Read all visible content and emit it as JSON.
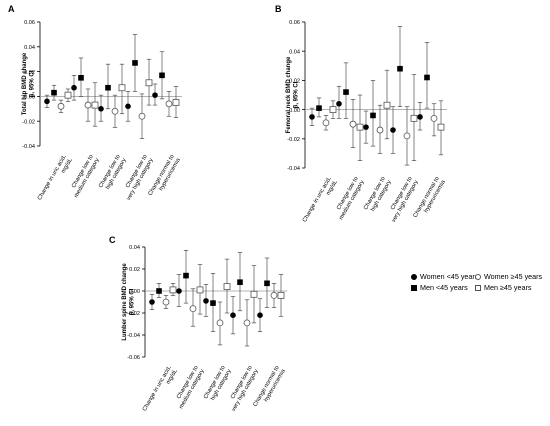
{
  "chart_data": [
    {
      "panel_letter": "A",
      "type": "scatter",
      "ylabel": [
        "Total hip  BMD change",
        "β, 95% CI"
      ],
      "yticks": [
        "0.06",
        "0.04",
        "0.02",
        "0.00",
        "-0.02",
        "-0.04"
      ],
      "ylim": [
        -0.04,
        0.06
      ],
      "categories": [
        "Change in uric acid,\nmg/dL",
        "Change low to\nmedium category",
        "Change low to\nhigh category",
        "Change low to\nvery high category",
        "Change normal to\nhyperuricemia"
      ],
      "series": [
        {
          "name": "Women <45 years",
          "points": [
            [
              -0.004,
              -0.009,
              0.001
            ],
            [
              0.007,
              -0.003,
              0.017
            ],
            [
              -0.01,
              -0.02,
              0.001
            ],
            [
              -0.008,
              -0.02,
              0.004
            ],
            [
              0.001,
              -0.007,
              0.01
            ]
          ]
        },
        {
          "name": "Men <45 years",
          "points": [
            [
              0.003,
              -0.003,
              0.009
            ],
            [
              0.015,
              0.0,
              0.031
            ],
            [
              0.007,
              -0.01,
              0.026
            ],
            [
              0.027,
              0.004,
              0.05
            ],
            [
              0.017,
              -0.002,
              0.036
            ]
          ]
        },
        {
          "name": "Women ≥45 years",
          "points": [
            [
              -0.008,
              -0.013,
              -0.003
            ],
            [
              -0.007,
              -0.02,
              0.006
            ],
            [
              -0.012,
              -0.025,
              0.001
            ],
            [
              -0.016,
              -0.034,
              0.002
            ],
            [
              -0.006,
              -0.016,
              0.004
            ]
          ]
        },
        {
          "name": "Men ≥45 years",
          "points": [
            [
              0.001,
              -0.004,
              0.006
            ],
            [
              -0.007,
              -0.024,
              0.011
            ],
            [
              0.007,
              -0.014,
              0.026
            ],
            [
              0.011,
              -0.007,
              0.03
            ],
            [
              -0.005,
              -0.017,
              0.008
            ]
          ]
        }
      ]
    },
    {
      "panel_letter": "B",
      "type": "scatter",
      "ylabel": [
        "Femoral neck  BMD change",
        "β, 95% CI"
      ],
      "yticks": [
        "0.06",
        "0.04",
        "0.02",
        "0.00",
        "-0.02",
        "-0.04"
      ],
      "ylim": [
        -0.04,
        0.06
      ],
      "categories": [
        "Change in uric acid,\nmg/dL",
        "Change low to\nmedium category",
        "Change low to\nhigh category",
        "Change low to\nvery high category",
        "Change normal to\nhyperuricemia"
      ],
      "series": [
        {
          "name": "Women <45 years",
          "points": [
            [
              -0.005,
              -0.011,
              0.001
            ],
            [
              0.004,
              -0.006,
              0.016
            ],
            [
              -0.012,
              -0.023,
              -0.001
            ],
            [
              -0.014,
              -0.03,
              0.002
            ],
            [
              -0.005,
              -0.014,
              0.005
            ]
          ]
        },
        {
          "name": "Men <45 years",
          "points": [
            [
              0.001,
              -0.005,
              0.008
            ],
            [
              0.012,
              -0.006,
              0.032
            ],
            [
              -0.004,
              -0.025,
              0.02
            ],
            [
              0.028,
              0.002,
              0.057
            ],
            [
              0.022,
              0.001,
              0.046
            ]
          ]
        },
        {
          "name": "Women ≥45 years",
          "points": [
            [
              -0.009,
              -0.014,
              -0.004
            ],
            [
              -0.01,
              -0.026,
              0.007
            ],
            [
              -0.014,
              -0.03,
              0.003
            ],
            [
              -0.018,
              -0.038,
              0.002
            ],
            [
              -0.006,
              -0.018,
              0.004
            ]
          ]
        },
        {
          "name": "Men ≥45 years",
          "points": [
            [
              0.0,
              -0.006,
              0.006
            ],
            [
              -0.012,
              -0.035,
              0.01
            ],
            [
              0.003,
              -0.02,
              0.027
            ],
            [
              -0.006,
              -0.035,
              0.024
            ],
            [
              -0.012,
              -0.031,
              0.006
            ]
          ]
        }
      ]
    },
    {
      "panel_letter": "C",
      "type": "scatter",
      "ylabel": [
        "Lumber spine  BMD change",
        "β, 95% CI"
      ],
      "yticks": [
        "0.04",
        "0.02",
        "0.00",
        "-0.02",
        "-0.04",
        "-0.06"
      ],
      "ylim": [
        -0.06,
        0.04
      ],
      "categories": [
        "Change in uric acid,\nmg/dL",
        "Change low to\nmedium category",
        "Change low to\nhigh category",
        "Change low to\nvery high category",
        "Change normal to\nhyperuricemia"
      ],
      "series": [
        {
          "name": "Women <45 years",
          "points": [
            [
              -0.01,
              -0.017,
              -0.003
            ],
            [
              0.0,
              -0.014,
              0.015
            ],
            [
              -0.009,
              -0.023,
              0.006
            ],
            [
              -0.022,
              -0.039,
              -0.005
            ],
            [
              -0.022,
              -0.037,
              -0.007
            ]
          ]
        },
        {
          "name": "Men <45 years",
          "points": [
            [
              0.0,
              -0.006,
              0.007
            ],
            [
              0.014,
              -0.011,
              0.037
            ],
            [
              -0.011,
              -0.037,
              0.016
            ],
            [
              0.008,
              -0.018,
              0.035
            ],
            [
              0.007,
              -0.015,
              0.03
            ]
          ]
        },
        {
          "name": "Women ≥45 years",
          "points": [
            [
              -0.01,
              -0.016,
              -0.004
            ],
            [
              -0.016,
              -0.032,
              0.002
            ],
            [
              -0.029,
              -0.049,
              -0.01
            ],
            [
              -0.029,
              -0.05,
              -0.008
            ],
            [
              -0.004,
              -0.015,
              0.007
            ]
          ]
        },
        {
          "name": "Men ≥45 years",
          "points": [
            [
              0.001,
              -0.004,
              0.007
            ],
            [
              0.001,
              -0.021,
              0.024
            ],
            [
              0.004,
              -0.02,
              0.029
            ],
            [
              -0.003,
              -0.029,
              0.023
            ],
            [
              -0.004,
              -0.023,
              0.015
            ]
          ]
        }
      ]
    }
  ],
  "legend": [
    {
      "label": "Women <45 years",
      "marker": "filled-circle"
    },
    {
      "label": "Women ≥45 years",
      "marker": "open-circle"
    },
    {
      "label": "Men <45 years",
      "marker": "filled-square"
    },
    {
      "label": "Men ≥45 years",
      "marker": "open-square"
    }
  ],
  "colors": {
    "filled": "#000000",
    "open": "#ffffff",
    "open_edge": "#555555",
    "axis": "#000000",
    "zero_line": "#9a9a9a",
    "error_bar": "#333333"
  }
}
